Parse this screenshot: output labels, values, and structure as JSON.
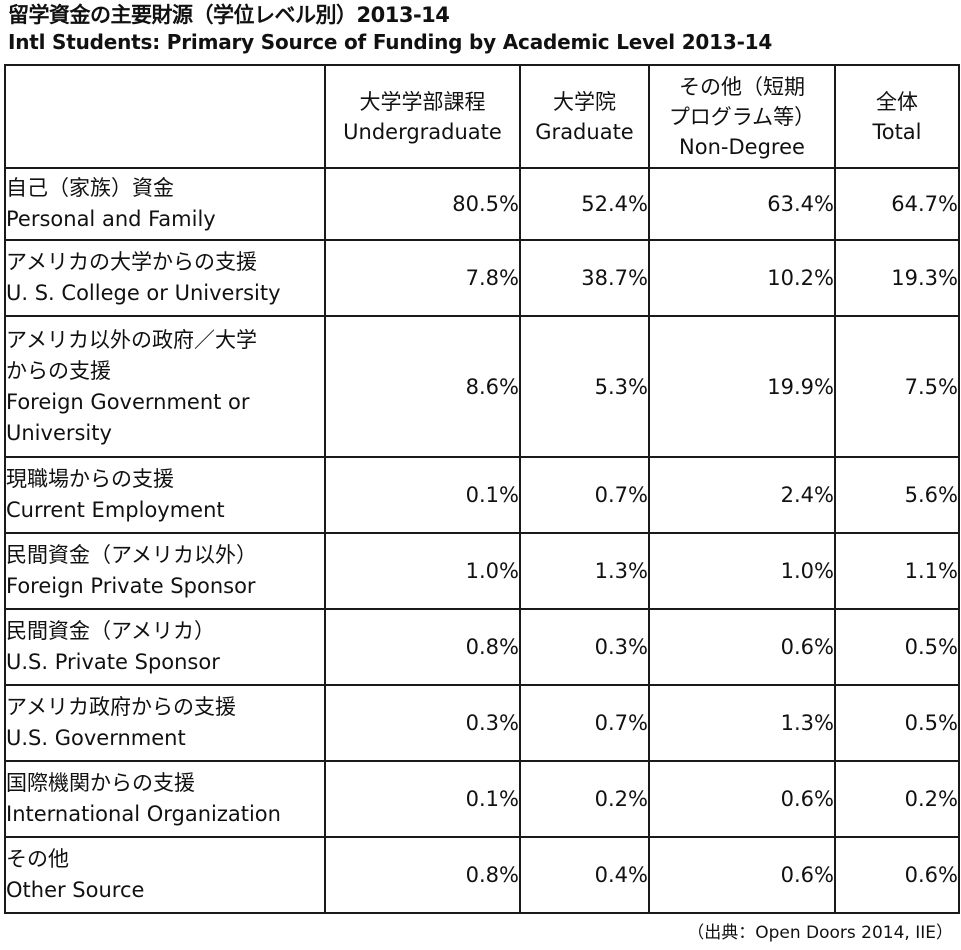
{
  "title_ja": "留学資金の主要財源（学位レベル別）2013-14",
  "title_en": "Intl Students: Primary Source of Funding by Academic Level 2013-14",
  "source": "（出典：Open Doors 2014, IIE）",
  "chart_data": {
    "type": "table",
    "columns": [
      {
        "ja": "大学学部課程",
        "en": "Undergraduate"
      },
      {
        "ja": "大学院",
        "en": "Graduate"
      },
      {
        "ja": "その他（短期\nプログラム等）",
        "en": "Non-Degree"
      },
      {
        "ja": "全体",
        "en": "Total"
      }
    ],
    "rows": [
      {
        "ja": "自己（家族）資金",
        "en": "Personal and Family",
        "values": [
          "80.5%",
          "52.4%",
          "63.4%",
          "64.7%"
        ]
      },
      {
        "ja": "アメリカの大学からの支援",
        "en": "U. S. College or University",
        "values": [
          "7.8%",
          "38.7%",
          "10.2%",
          "19.3%"
        ]
      },
      {
        "ja": "アメリカ以外の政府／大学\nからの支援",
        "en": "Foreign Government or\nUniversity",
        "values": [
          "8.6%",
          "5.3%",
          "19.9%",
          "7.5%"
        ]
      },
      {
        "ja": "現職場からの支援",
        "en": "Current Employment",
        "values": [
          "0.1%",
          "0.7%",
          "2.4%",
          "5.6%"
        ]
      },
      {
        "ja": "民間資金（アメリカ以外）",
        "en": "Foreign Private Sponsor",
        "values": [
          "1.0%",
          "1.3%",
          "1.0%",
          "1.1%"
        ]
      },
      {
        "ja": "民間資金（アメリカ）",
        "en": "U.S. Private Sponsor",
        "values": [
          "0.8%",
          "0.3%",
          "0.6%",
          "0.5%"
        ]
      },
      {
        "ja": "アメリカ政府からの支援",
        "en": "U.S. Government",
        "values": [
          "0.3%",
          "0.7%",
          "1.3%",
          "0.5%"
        ]
      },
      {
        "ja": "国際機関からの支援",
        "en": "International Organization",
        "values": [
          "0.1%",
          "0.2%",
          "0.6%",
          "0.2%"
        ]
      },
      {
        "ja": "その他",
        "en": "Other Source",
        "values": [
          "0.8%",
          "0.4%",
          "0.6%",
          "0.6%"
        ]
      }
    ]
  }
}
